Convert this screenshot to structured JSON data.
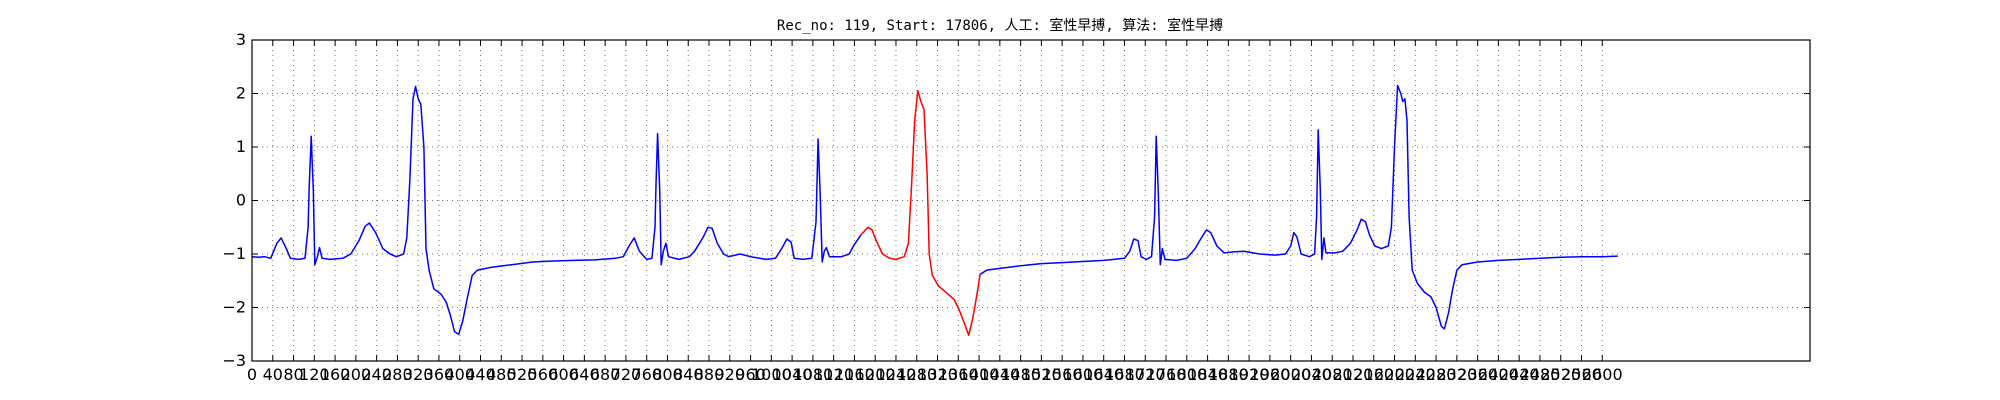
{
  "chart_data": {
    "type": "line",
    "title": "Rec_no: 119, Start: 17806, 人工: 室性早搏, 算法: 室性早搏",
    "xlabel": "",
    "ylabel": "",
    "xlim": [
      0,
      3000
    ],
    "ylim": [
      -3,
      3
    ],
    "grid": true,
    "x_ticks": [
      0,
      40,
      80,
      120,
      160,
      200,
      240,
      280,
      320,
      360,
      400,
      440,
      480,
      520,
      560,
      600,
      640,
      680,
      720,
      760,
      800,
      840,
      880,
      920,
      960,
      1000,
      1040,
      1080,
      1120,
      1160,
      1200,
      1240,
      1280,
      1320,
      1360,
      1400,
      1440,
      1480,
      1520,
      1560,
      1600,
      1640,
      1680,
      1720,
      1760,
      1800,
      1840,
      1880,
      1920,
      1960,
      2000,
      2040,
      2080,
      2120,
      2160,
      2200,
      2240,
      2280,
      2320,
      2360,
      2400,
      2440,
      2480,
      2520,
      2560,
      2600
    ],
    "x_tick_labels": [
      "0",
      "40",
      "80",
      "120",
      "160",
      "200",
      "240",
      "280",
      "320",
      "360",
      "400",
      "440",
      "480",
      "520",
      "560",
      "600",
      "640",
      "680",
      "720",
      "760",
      "800",
      "840",
      "880",
      "920",
      "960",
      "1000",
      "1040",
      "1080",
      "1120",
      "1160",
      "1200",
      "1240",
      "1280",
      "1320",
      "1360",
      "1400",
      "1440",
      "1480",
      "1520",
      "1560",
      "1600",
      "1640",
      "1680",
      "1720",
      "1760",
      "1800",
      "1840",
      "1880",
      "1920",
      "1960",
      "2000",
      "2040",
      "2080",
      "2120",
      "2160",
      "2200",
      "2240",
      "2280",
      "2320",
      "2360",
      "2400",
      "2440",
      "2480",
      "2520",
      "2560",
      "2600"
    ],
    "y_ticks": [
      -3,
      -2,
      -1,
      0,
      1,
      2,
      3
    ],
    "y_tick_labels": [
      "−3",
      "−2",
      "−1",
      "0",
      "1",
      "2",
      "3"
    ],
    "series": [
      {
        "color": "#0000ff",
        "points": [
          [
            0,
            -1.05
          ],
          [
            12,
            -1.06
          ],
          [
            24,
            -1.05
          ],
          [
            36,
            -1.08
          ],
          [
            48,
            -0.8
          ],
          [
            56,
            -0.7
          ],
          [
            66,
            -0.9
          ],
          [
            74,
            -1.08
          ],
          [
            90,
            -1.1
          ],
          [
            102,
            -1.08
          ],
          [
            108,
            -0.5
          ],
          [
            110,
            0.2
          ],
          [
            114,
            1.2
          ],
          [
            118,
            0.2
          ],
          [
            121,
            -1.2
          ],
          [
            126,
            -1.05
          ],
          [
            130,
            -0.88
          ],
          [
            135,
            -1.08
          ],
          [
            150,
            -1.1
          ],
          [
            175,
            -1.08
          ],
          [
            190,
            -1.0
          ],
          [
            206,
            -0.75
          ],
          [
            218,
            -0.48
          ],
          [
            226,
            -0.42
          ],
          [
            238,
            -0.6
          ],
          [
            252,
            -0.9
          ],
          [
            266,
            -1.0
          ],
          [
            278,
            -1.05
          ],
          [
            292,
            -1.0
          ],
          [
            298,
            -0.7
          ],
          [
            304,
            0.4
          ],
          [
            310,
            1.9
          ],
          [
            315,
            2.13
          ],
          [
            320,
            1.9
          ],
          [
            325,
            1.8
          ],
          [
            331,
            1.0
          ],
          [
            335,
            -0.9
          ],
          [
            341,
            -1.3
          ],
          [
            350,
            -1.65
          ],
          [
            364,
            -1.75
          ],
          [
            374,
            -1.9
          ],
          [
            382,
            -2.15
          ],
          [
            390,
            -2.45
          ],
          [
            398,
            -2.5
          ],
          [
            406,
            -2.25
          ],
          [
            414,
            -1.85
          ],
          [
            424,
            -1.4
          ],
          [
            434,
            -1.3
          ],
          [
            460,
            -1.25
          ],
          [
            500,
            -1.2
          ],
          [
            540,
            -1.15
          ],
          [
            580,
            -1.13
          ],
          [
            620,
            -1.12
          ],
          [
            660,
            -1.11
          ],
          [
            700,
            -1.08
          ],
          [
            715,
            -1.05
          ],
          [
            726,
            -0.85
          ],
          [
            736,
            -0.7
          ],
          [
            746,
            -0.95
          ],
          [
            760,
            -1.1
          ],
          [
            770,
            -1.08
          ],
          [
            776,
            -0.5
          ],
          [
            778,
            0.3
          ],
          [
            781,
            1.25
          ],
          [
            785,
            0.2
          ],
          [
            788,
            -1.2
          ],
          [
            792,
            -0.95
          ],
          [
            797,
            -0.8
          ],
          [
            802,
            -1.05
          ],
          [
            822,
            -1.1
          ],
          [
            842,
            -1.05
          ],
          [
            852,
            -0.95
          ],
          [
            868,
            -0.7
          ],
          [
            878,
            -0.5
          ],
          [
            886,
            -0.52
          ],
          [
            896,
            -0.8
          ],
          [
            908,
            -1.0
          ],
          [
            918,
            -1.05
          ],
          [
            940,
            -1.0
          ],
          [
            960,
            -1.05
          ],
          [
            990,
            -1.1
          ],
          [
            1008,
            -1.08
          ],
          [
            1020,
            -0.9
          ],
          [
            1030,
            -0.72
          ],
          [
            1038,
            -0.78
          ],
          [
            1044,
            -1.08
          ],
          [
            1060,
            -1.1
          ],
          [
            1078,
            -1.08
          ],
          [
            1086,
            -0.4
          ],
          [
            1090,
            1.15
          ],
          [
            1094,
            0.1
          ],
          [
            1098,
            -1.15
          ],
          [
            1102,
            -0.95
          ],
          [
            1106,
            -0.88
          ],
          [
            1112,
            -1.05
          ],
          [
            1135,
            -1.05
          ],
          [
            1150,
            -1.0
          ],
          [
            1160,
            -0.82
          ],
          [
            1172,
            -0.65
          ]
        ]
      },
      {
        "color": "#ff0000",
        "points": [
          [
            1172,
            -0.65
          ],
          [
            1186,
            -0.5
          ],
          [
            1194,
            -0.55
          ],
          [
            1202,
            -0.75
          ],
          [
            1214,
            -1.0
          ],
          [
            1228,
            -1.08
          ],
          [
            1240,
            -1.1
          ],
          [
            1256,
            -1.05
          ],
          [
            1264,
            -0.8
          ],
          [
            1270,
            0.3
          ],
          [
            1276,
            1.5
          ],
          [
            1282,
            2.05
          ],
          [
            1288,
            1.85
          ],
          [
            1294,
            1.7
          ],
          [
            1300,
            0.5
          ],
          [
            1304,
            -1.0
          ],
          [
            1310,
            -1.4
          ],
          [
            1322,
            -1.6
          ],
          [
            1340,
            -1.75
          ],
          [
            1352,
            -1.85
          ],
          [
            1362,
            -2.05
          ],
          [
            1372,
            -2.3
          ],
          [
            1380,
            -2.52
          ],
          [
            1388,
            -2.2
          ],
          [
            1396,
            -1.75
          ],
          [
            1402,
            -1.38
          ]
        ]
      },
      {
        "color": "#0000ff",
        "points": [
          [
            1402,
            -1.38
          ],
          [
            1415,
            -1.3
          ],
          [
            1440,
            -1.27
          ],
          [
            1480,
            -1.22
          ],
          [
            1520,
            -1.18
          ],
          [
            1560,
            -1.16
          ],
          [
            1600,
            -1.14
          ],
          [
            1640,
            -1.12
          ],
          [
            1660,
            -1.1
          ],
          [
            1680,
            -1.08
          ],
          [
            1690,
            -0.95
          ],
          [
            1698,
            -0.72
          ],
          [
            1706,
            -0.75
          ],
          [
            1712,
            -1.05
          ],
          [
            1722,
            -1.1
          ],
          [
            1732,
            -1.05
          ],
          [
            1738,
            -0.3
          ],
          [
            1741,
            1.2
          ],
          [
            1745,
            0.2
          ],
          [
            1749,
            -1.2
          ],
          [
            1753,
            -0.9
          ],
          [
            1758,
            -1.1
          ],
          [
            1780,
            -1.12
          ],
          [
            1800,
            -1.08
          ],
          [
            1816,
            -0.9
          ],
          [
            1828,
            -0.7
          ],
          [
            1838,
            -0.55
          ],
          [
            1846,
            -0.6
          ],
          [
            1858,
            -0.85
          ],
          [
            1872,
            -0.98
          ],
          [
            1890,
            -0.96
          ],
          [
            1910,
            -0.95
          ],
          [
            1940,
            -1.0
          ],
          [
            1970,
            -1.02
          ],
          [
            1990,
            -1.0
          ],
          [
            2000,
            -0.85
          ],
          [
            2006,
            -0.6
          ],
          [
            2012,
            -0.68
          ],
          [
            2020,
            -1.0
          ],
          [
            2036,
            -1.05
          ],
          [
            2046,
            -1.0
          ],
          [
            2050,
            -0.3
          ],
          [
            2053,
            1.32
          ],
          [
            2057,
            0.2
          ],
          [
            2060,
            -1.1
          ],
          [
            2064,
            -0.7
          ],
          [
            2068,
            -0.98
          ],
          [
            2085,
            -0.98
          ],
          [
            2100,
            -0.95
          ],
          [
            2115,
            -0.8
          ],
          [
            2128,
            -0.55
          ],
          [
            2136,
            -0.35
          ],
          [
            2144,
            -0.4
          ],
          [
            2152,
            -0.65
          ],
          [
            2162,
            -0.85
          ],
          [
            2175,
            -0.9
          ],
          [
            2188,
            -0.85
          ],
          [
            2194,
            -0.5
          ],
          [
            2200,
            1.0
          ],
          [
            2206,
            2.15
          ],
          [
            2212,
            2.0
          ],
          [
            2216,
            1.85
          ],
          [
            2220,
            1.9
          ],
          [
            2224,
            1.5
          ],
          [
            2228,
            -0.3
          ],
          [
            2234,
            -1.3
          ],
          [
            2244,
            -1.55
          ],
          [
            2258,
            -1.72
          ],
          [
            2270,
            -1.8
          ],
          [
            2280,
            -2.0
          ],
          [
            2290,
            -2.35
          ],
          [
            2296,
            -2.4
          ],
          [
            2304,
            -2.1
          ],
          [
            2312,
            -1.65
          ],
          [
            2320,
            -1.3
          ],
          [
            2330,
            -1.2
          ],
          [
            2360,
            -1.15
          ],
          [
            2400,
            -1.12
          ],
          [
            2440,
            -1.1
          ],
          [
            2480,
            -1.08
          ],
          [
            2520,
            -1.06
          ],
          [
            2560,
            -1.05
          ],
          [
            2600,
            -1.05
          ],
          [
            2630,
            -1.04
          ]
        ]
      }
    ]
  }
}
